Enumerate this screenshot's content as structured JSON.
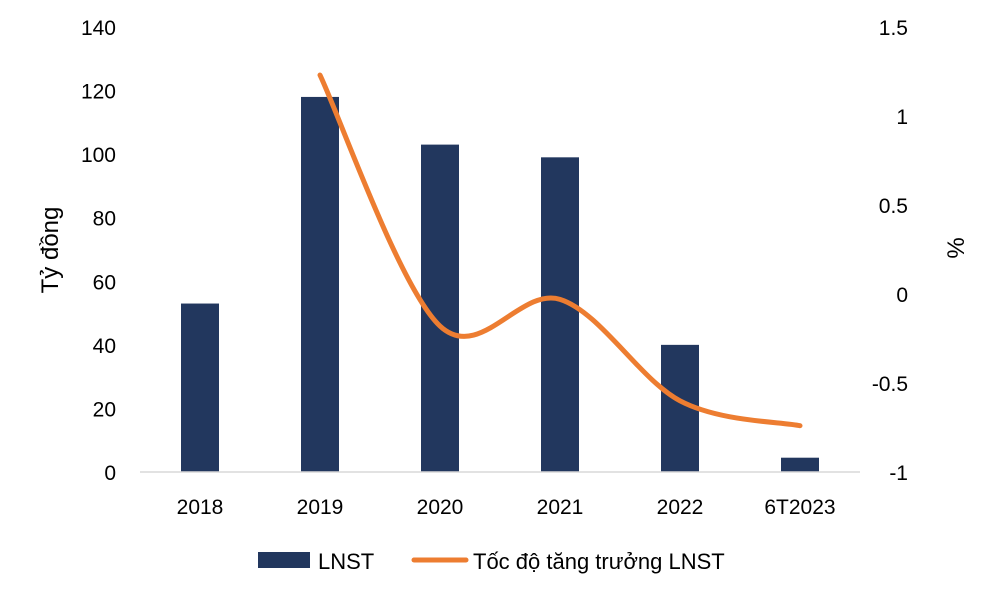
{
  "colors": {
    "bar": "#22375e",
    "line": "#ed7d31",
    "axis": "#d9d9d9"
  },
  "chart_data": {
    "type": "bar",
    "categories": [
      "2018",
      "2019",
      "2020",
      "2021",
      "2022",
      "6T2023"
    ],
    "series": [
      {
        "name": "LNST",
        "type": "bar",
        "axis": "left",
        "values": [
          53,
          118,
          103,
          99,
          40,
          4.5
        ]
      },
      {
        "name": "Tốc độ tăng trưởng LNST",
        "type": "line",
        "axis": "right",
        "smooth": true,
        "values": [
          null,
          1.23,
          -0.18,
          -0.03,
          -0.6,
          -0.74
        ]
      }
    ],
    "ylabel": "Tỷ đồng",
    "y2label": "%",
    "ylim": [
      0,
      140
    ],
    "y2lim": [
      -1,
      1.5
    ],
    "yticks": [
      "0",
      "20",
      "40",
      "60",
      "80",
      "100",
      "120",
      "140"
    ],
    "y2ticks": [
      "-1",
      "-0.5",
      "0",
      "0.5",
      "1",
      "1.5"
    ],
    "legend_position": "bottom",
    "grid": false
  }
}
